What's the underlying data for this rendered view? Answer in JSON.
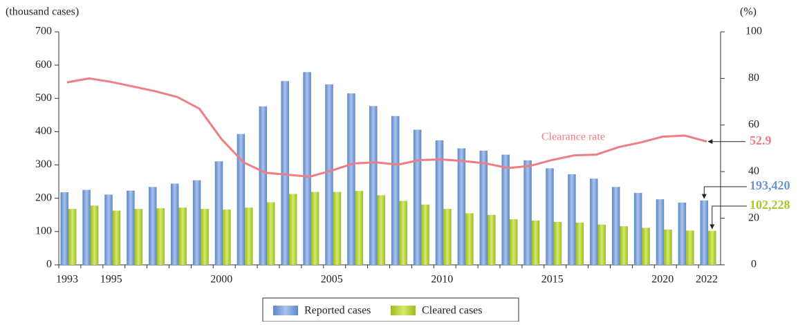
{
  "chart_data": {
    "type": "bar",
    "y_label": "(thousand cases)",
    "y2_label": "(%)",
    "categories": [
      "1993",
      null,
      "1995",
      null,
      null,
      null,
      null,
      "2000",
      null,
      null,
      null,
      null,
      "2005",
      null,
      null,
      null,
      null,
      "2010",
      null,
      null,
      null,
      null,
      "2015",
      null,
      null,
      null,
      null,
      "2020",
      null,
      "2022"
    ],
    "series": [
      {
        "name": "Reported cases",
        "color": "#7fa6dc",
        "type": "bar",
        "values": [
          218,
          225,
          211,
          223,
          234,
          244,
          254,
          311,
          393,
          476,
          552,
          579,
          542,
          515,
          477,
          447,
          406,
          374,
          350,
          343,
          331,
          314,
          290,
          272,
          259,
          234,
          216,
          197,
          187,
          193.42
        ],
        "value_labels": [
          null,
          null,
          null,
          null,
          null,
          null,
          null,
          null,
          null,
          null,
          null,
          null,
          null,
          null,
          null,
          null,
          null,
          null,
          null,
          null,
          null,
          null,
          null,
          null,
          null,
          null,
          null,
          null,
          null,
          "193,420"
        ]
      },
      {
        "name": "Cleared cases",
        "color": "#b9d440",
        "type": "bar",
        "values": [
          168,
          178,
          163,
          168,
          170,
          172,
          168,
          166,
          172,
          188,
          213,
          219,
          219,
          222,
          209,
          192,
          181,
          168,
          155,
          150,
          137,
          133,
          129,
          127,
          121,
          116,
          111,
          106,
          103,
          102.228
        ],
        "value_labels": [
          null,
          null,
          null,
          null,
          null,
          null,
          null,
          null,
          null,
          null,
          null,
          null,
          null,
          null,
          null,
          null,
          null,
          null,
          null,
          null,
          null,
          null,
          null,
          null,
          null,
          null,
          null,
          null,
          null,
          "102,228"
        ]
      },
      {
        "name": "Clearance rate",
        "color": "#ee7d84",
        "type": "line",
        "axis": "y2",
        "values": [
          78.3,
          80,
          78.5,
          76.5,
          74.5,
          72,
          67,
          54,
          44,
          39.5,
          38.7,
          37.8,
          40.5,
          43.5,
          44,
          43,
          45,
          45.2,
          44.5,
          43.5,
          41.5,
          42.5,
          45,
          47,
          47.3,
          50.5,
          52.5,
          55,
          55.5,
          52.9
        ]
      }
    ],
    "ylim": [
      0,
      700
    ],
    "yticks": [
      0,
      100,
      200,
      300,
      400,
      500,
      600,
      700
    ],
    "y2lim": [
      0,
      100
    ],
    "y2ticks": [
      0,
      20,
      40,
      60,
      80,
      100
    ]
  }
}
